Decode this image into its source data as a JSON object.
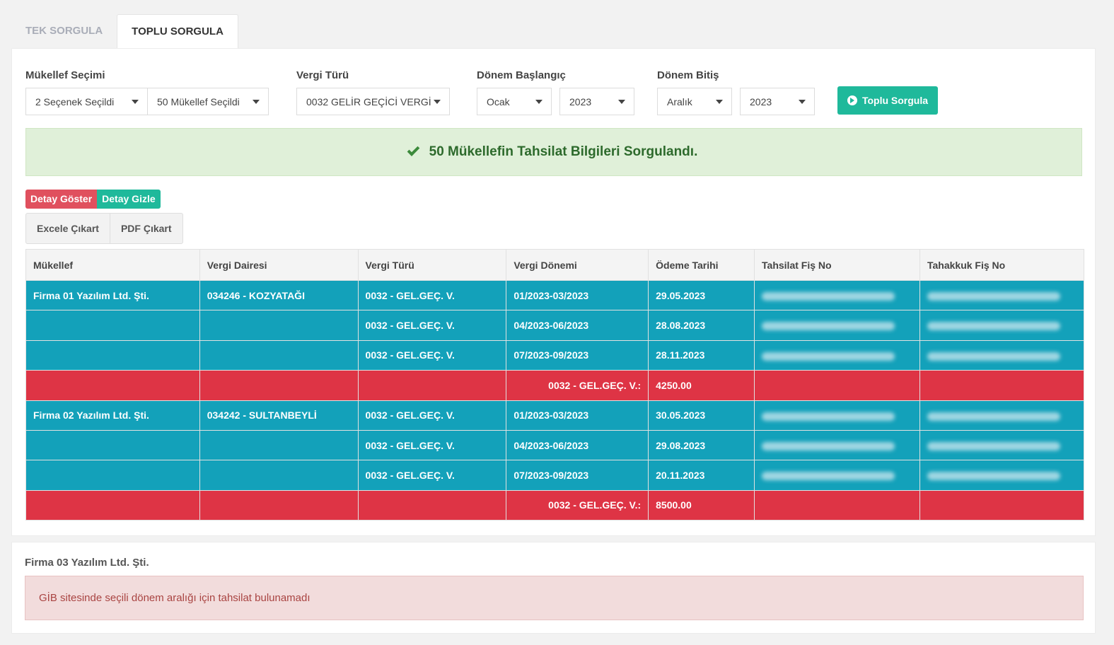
{
  "tabs": [
    {
      "label": "TEK SORGULA",
      "active": false
    },
    {
      "label": "TOPLU SORGULA",
      "active": true
    }
  ],
  "form": {
    "mukellef": {
      "label": "Mükellef Seçimi",
      "selection": "2 Seçenek Seçildi",
      "count": "50 Mükellef Seçildi"
    },
    "vergi_turu": {
      "label": "Vergi Türü",
      "value": "0032 GELİR GEÇİCİ VERGİ"
    },
    "donem_baslangic": {
      "label": "Dönem Başlangıç",
      "month": "Ocak",
      "year": "2023"
    },
    "donem_bitis": {
      "label": "Dönem Bitiş",
      "month": "Aralık",
      "year": "2023"
    },
    "submit_label": "Toplu Sorgula"
  },
  "success_message": "50 Mükellefin Tahsilat Bilgileri Sorgulandı.",
  "toggles": {
    "show": "Detay Göster",
    "hide": "Detay Gizle"
  },
  "export": {
    "excel": "Excele Çıkart",
    "pdf": "PDF Çıkart"
  },
  "table": {
    "headers": [
      "Mükellef",
      "Vergi Dairesi",
      "Vergi Türü",
      "Vergi Dönemi",
      "Ödeme Tarihi",
      "Tahsilat Fiş No",
      "Tahakkuk Fiş No"
    ],
    "groups": [
      {
        "firm": "Firma 01 Yazılım Ltd. Şti.",
        "office": "034246 - KOZYATAĞI",
        "rows": [
          {
            "tax_type": "0032 - GEL.GEÇ. V.",
            "period": "01/2023-03/2023",
            "date": "29.05.2023"
          },
          {
            "tax_type": "0032 - GEL.GEÇ. V.",
            "period": "04/2023-06/2023",
            "date": "28.08.2023"
          },
          {
            "tax_type": "0032 - GEL.GEÇ. V.",
            "period": "07/2023-09/2023",
            "date": "28.11.2023"
          }
        ],
        "total_label": "0032 - GEL.GEÇ. V.:",
        "total": "4250.00"
      },
      {
        "firm": "Firma 02 Yazılım Ltd. Şti.",
        "office": "034242 - SULTANBEYLİ",
        "rows": [
          {
            "tax_type": "0032 - GEL.GEÇ. V.",
            "period": "01/2023-03/2023",
            "date": "30.05.2023"
          },
          {
            "tax_type": "0032 - GEL.GEÇ. V.",
            "period": "04/2023-06/2023",
            "date": "29.08.2023"
          },
          {
            "tax_type": "0032 - GEL.GEÇ. V.",
            "period": "07/2023-09/2023",
            "date": "20.11.2023"
          }
        ],
        "total_label": "0032 - GEL.GEÇ. V.:",
        "total": "8500.00"
      }
    ]
  },
  "no_result": {
    "firm": "Firma 03 Yazılım Ltd. Şti.",
    "message": "GİB sitesinde seçili dönem aralığı için tahsilat bulunamadı"
  },
  "colors": {
    "accent": "#1fb99b",
    "detail_row": "#13a1ba",
    "total_row": "#de3445",
    "danger_text": "#a94442"
  }
}
